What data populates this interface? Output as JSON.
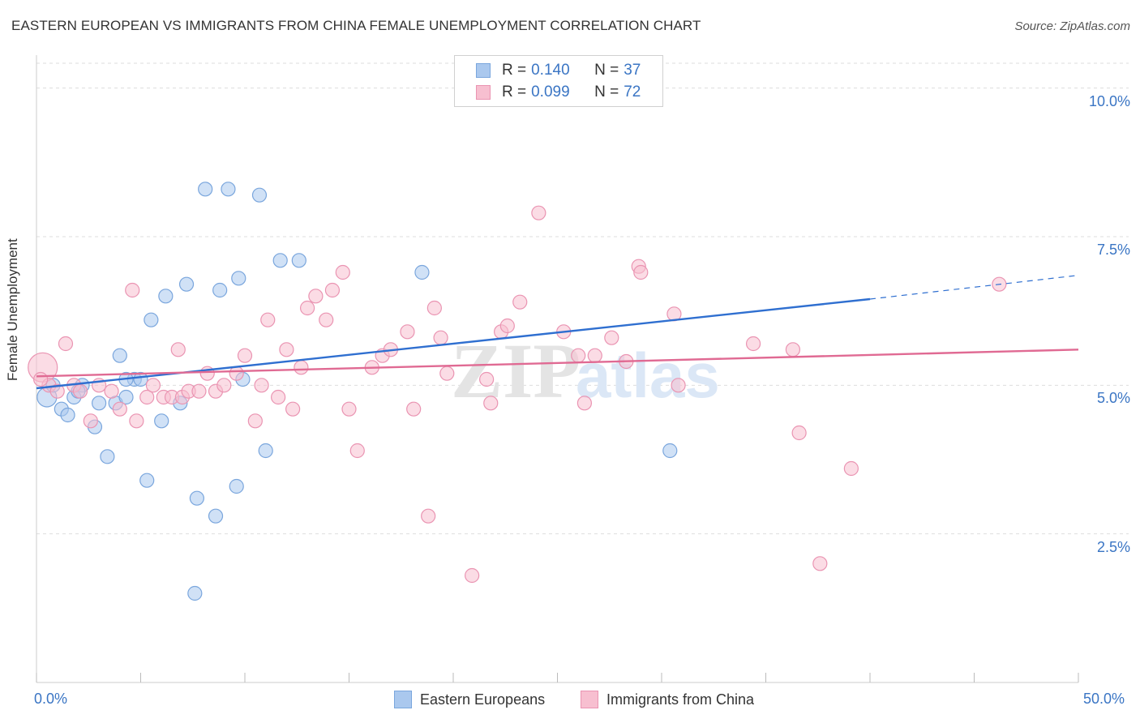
{
  "header": {
    "title": "EASTERN EUROPEAN VS IMMIGRANTS FROM CHINA FEMALE UNEMPLOYMENT CORRELATION CHART",
    "source": "Source: ZipAtlas.com"
  },
  "watermark": {
    "text_zip": "ZIP",
    "text_atlas": "atlas"
  },
  "legend_top": {
    "rows": [
      {
        "r_label": "R =",
        "r_value": "0.140",
        "n_label": "N =",
        "n_value": "37"
      },
      {
        "r_label": "R =",
        "r_value": "0.099",
        "n_label": "N =",
        "n_value": "72"
      }
    ]
  },
  "legend_bottom": {
    "items": [
      {
        "label": "Eastern Europeans"
      },
      {
        "label": "Immigrants from China"
      }
    ]
  },
  "colors": {
    "series_blue_fill": "#aac8ee",
    "series_blue_stroke": "#7aa6dd",
    "series_blue_line": "#2f6fd0",
    "series_pink_fill": "#f7bfd0",
    "series_pink_stroke": "#ea94b2",
    "series_pink_line": "#e06a93",
    "axis_text": "#3a75c4",
    "grid": "#dddddd"
  },
  "chart_data": {
    "type": "scatter",
    "title": "EASTERN EUROPEAN VS IMMIGRANTS FROM CHINA FEMALE UNEMPLOYMENT CORRELATION CHART",
    "xlabel": "",
    "ylabel": "Female Unemployment",
    "xlim": [
      0,
      50
    ],
    "ylim": [
      0,
      10.5
    ],
    "x_tick_labels": [
      "0.0%",
      "50.0%"
    ],
    "y_ticks": [
      2.5,
      5.0,
      7.5,
      10.0
    ],
    "y_tick_labels": [
      "2.5%",
      "5.0%",
      "7.5%",
      "10.0%"
    ],
    "grid": true,
    "legend_position": "top-center",
    "series": [
      {
        "name": "Eastern Europeans",
        "r": 0.14,
        "n": 37,
        "points": [
          [
            0.5,
            4.8
          ],
          [
            0.8,
            5.0
          ],
          [
            1.2,
            4.6
          ],
          [
            1.5,
            4.5
          ],
          [
            1.8,
            4.8
          ],
          [
            2.2,
            5.0
          ],
          [
            2.8,
            4.3
          ],
          [
            3.0,
            4.7
          ],
          [
            3.4,
            3.8
          ],
          [
            3.8,
            4.7
          ],
          [
            4.0,
            5.5
          ],
          [
            4.3,
            4.8
          ],
          [
            4.7,
            5.1
          ],
          [
            5.0,
            5.1
          ],
          [
            5.3,
            3.4
          ],
          [
            5.5,
            6.1
          ],
          [
            6.0,
            4.4
          ],
          [
            6.2,
            6.5
          ],
          [
            6.9,
            4.7
          ],
          [
            7.2,
            6.7
          ],
          [
            7.7,
            3.1
          ],
          [
            8.1,
            8.3
          ],
          [
            8.6,
            2.8
          ],
          [
            8.8,
            6.6
          ],
          [
            9.2,
            8.3
          ],
          [
            9.6,
            3.3
          ],
          [
            9.7,
            6.8
          ],
          [
            9.9,
            5.1
          ],
          [
            10.7,
            8.2
          ],
          [
            11.0,
            3.9
          ],
          [
            11.7,
            7.1
          ],
          [
            12.6,
            7.1
          ],
          [
            18.5,
            6.9
          ],
          [
            30.4,
            3.9
          ],
          [
            7.6,
            1.5
          ],
          [
            2.0,
            4.9
          ],
          [
            4.3,
            5.1
          ]
        ],
        "trend": {
          "x": [
            0,
            40
          ],
          "y": [
            4.95,
            6.45
          ],
          "dashed_to": [
            50,
            6.85
          ]
        }
      },
      {
        "name": "Immigrants from China",
        "r": 0.099,
        "n": 72,
        "points": [
          [
            0.3,
            5.3
          ],
          [
            0.6,
            5.0
          ],
          [
            1.0,
            4.9
          ],
          [
            1.4,
            5.7
          ],
          [
            1.8,
            5.0
          ],
          [
            2.1,
            4.9
          ],
          [
            2.6,
            4.4
          ],
          [
            3.0,
            5.0
          ],
          [
            3.6,
            4.9
          ],
          [
            4.0,
            4.6
          ],
          [
            4.6,
            6.6
          ],
          [
            4.8,
            4.4
          ],
          [
            5.3,
            4.8
          ],
          [
            5.6,
            5.0
          ],
          [
            6.1,
            4.8
          ],
          [
            6.5,
            4.8
          ],
          [
            6.8,
            5.6
          ],
          [
            7.0,
            4.8
          ],
          [
            7.3,
            4.9
          ],
          [
            7.8,
            4.9
          ],
          [
            8.2,
            5.2
          ],
          [
            8.6,
            4.9
          ],
          [
            9.0,
            5.0
          ],
          [
            9.6,
            5.2
          ],
          [
            10.0,
            5.5
          ],
          [
            10.5,
            4.4
          ],
          [
            10.8,
            5.0
          ],
          [
            11.1,
            6.1
          ],
          [
            11.6,
            4.8
          ],
          [
            12.0,
            5.6
          ],
          [
            12.3,
            4.6
          ],
          [
            12.7,
            5.3
          ],
          [
            13.0,
            6.3
          ],
          [
            13.4,
            6.5
          ],
          [
            13.9,
            6.1
          ],
          [
            14.2,
            6.6
          ],
          [
            14.7,
            6.9
          ],
          [
            15.0,
            4.6
          ],
          [
            15.4,
            3.9
          ],
          [
            16.1,
            5.3
          ],
          [
            16.6,
            5.5
          ],
          [
            17.0,
            5.6
          ],
          [
            17.8,
            5.9
          ],
          [
            18.1,
            4.6
          ],
          [
            18.8,
            2.8
          ],
          [
            19.1,
            6.3
          ],
          [
            19.4,
            5.8
          ],
          [
            19.7,
            5.2
          ],
          [
            20.9,
            1.8
          ],
          [
            21.6,
            5.1
          ],
          [
            21.8,
            4.7
          ],
          [
            22.3,
            5.9
          ],
          [
            22.6,
            6.0
          ],
          [
            23.2,
            6.4
          ],
          [
            24.1,
            7.9
          ],
          [
            25.3,
            5.9
          ],
          [
            26.0,
            5.5
          ],
          [
            26.3,
            4.7
          ],
          [
            26.8,
            5.5
          ],
          [
            27.6,
            5.8
          ],
          [
            28.3,
            5.4
          ],
          [
            28.9,
            7.0
          ],
          [
            29.0,
            6.9
          ],
          [
            30.8,
            5.0
          ],
          [
            30.6,
            6.2
          ],
          [
            34.4,
            5.7
          ],
          [
            36.3,
            5.6
          ],
          [
            36.6,
            4.2
          ],
          [
            37.6,
            2.0
          ],
          [
            39.1,
            3.6
          ],
          [
            46.2,
            6.7
          ],
          [
            0.2,
            5.1
          ]
        ],
        "trend": {
          "x": [
            0,
            50
          ],
          "y": [
            5.15,
            5.6
          ]
        }
      }
    ]
  }
}
